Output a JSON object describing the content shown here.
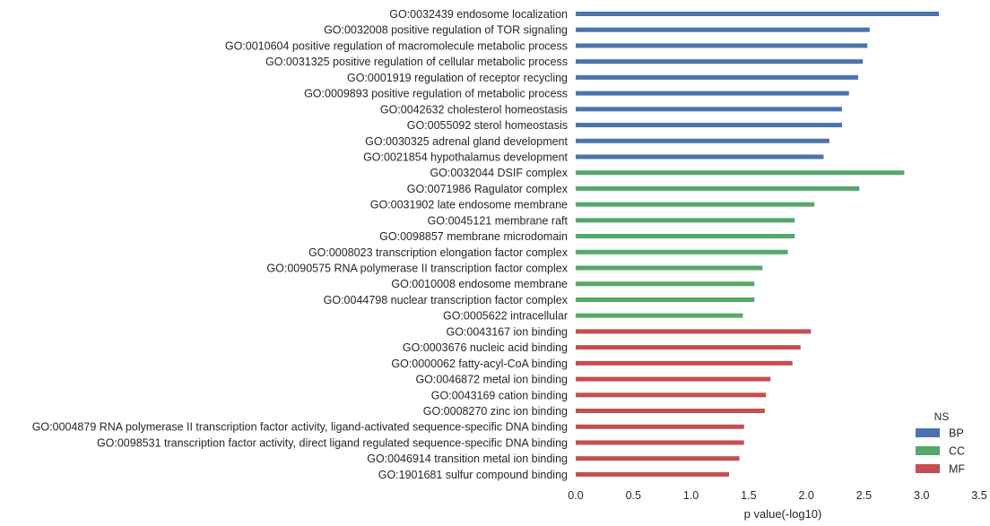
{
  "chart_data": {
    "type": "bar",
    "orientation": "horizontal",
    "xlabel": "p value(-log10)",
    "ylabel": "",
    "xlim": [
      0,
      3.5
    ],
    "xticks": [
      "0.0",
      "0.5",
      "1.0",
      "1.5",
      "2.0",
      "2.5",
      "3.0",
      "3.5"
    ],
    "grid": false,
    "legend": {
      "title": "NS",
      "position": "bottom-right",
      "entries": [
        {
          "name": "BP",
          "color": "#4c72b0"
        },
        {
          "name": "CC",
          "color": "#55a868"
        },
        {
          "name": "MF",
          "color": "#c44e52"
        }
      ]
    },
    "categories": [
      "GO:0032439 endosome localization",
      "GO:0032008 positive regulation of TOR signaling",
      "GO:0010604 positive regulation of macromolecule metabolic process",
      "GO:0031325 positive regulation of cellular metabolic process",
      "GO:0001919 regulation of receptor recycling",
      "GO:0009893 positive regulation of metabolic process",
      "GO:0042632 cholesterol homeostasis",
      "GO:0055092 sterol homeostasis",
      "GO:0030325 adrenal gland development",
      "GO:0021854 hypothalamus development",
      "GO:0032044 DSIF complex",
      "GO:0071986 Ragulator complex",
      "GO:0031902 late endosome membrane",
      "GO:0045121 membrane raft",
      "GO:0098857 membrane microdomain",
      "GO:0008023 transcription elongation factor complex",
      "GO:0090575 RNA polymerase II transcription factor complex",
      "GO:0010008 endosome membrane",
      "GO:0044798 nuclear transcription factor complex",
      "GO:0005622 intracellular",
      "GO:0043167 ion binding",
      "GO:0003676 nucleic acid binding",
      "GO:0000062 fatty-acyl-CoA binding",
      "GO:0046872 metal ion binding",
      "GO:0043169 cation binding",
      "GO:0008270 zinc ion binding",
      "GO:0004879 RNA polymerase II transcription factor activity, ligand-activated sequence-specific DNA binding",
      "GO:0098531 transcription factor activity, direct ligand regulated sequence-specific DNA binding",
      "GO:0046914 transition metal ion binding",
      "GO:1901681 sulfur compound binding"
    ],
    "values": [
      3.15,
      2.55,
      2.53,
      2.49,
      2.45,
      2.37,
      2.31,
      2.31,
      2.2,
      2.15,
      2.85,
      2.46,
      2.07,
      1.9,
      1.9,
      1.84,
      1.62,
      1.55,
      1.55,
      1.45,
      2.04,
      1.95,
      1.88,
      1.69,
      1.65,
      1.64,
      1.46,
      1.46,
      1.42,
      1.33
    ],
    "groups": [
      "BP",
      "BP",
      "BP",
      "BP",
      "BP",
      "BP",
      "BP",
      "BP",
      "BP",
      "BP",
      "CC",
      "CC",
      "CC",
      "CC",
      "CC",
      "CC",
      "CC",
      "CC",
      "CC",
      "CC",
      "MF",
      "MF",
      "MF",
      "MF",
      "MF",
      "MF",
      "MF",
      "MF",
      "MF",
      "MF"
    ]
  }
}
